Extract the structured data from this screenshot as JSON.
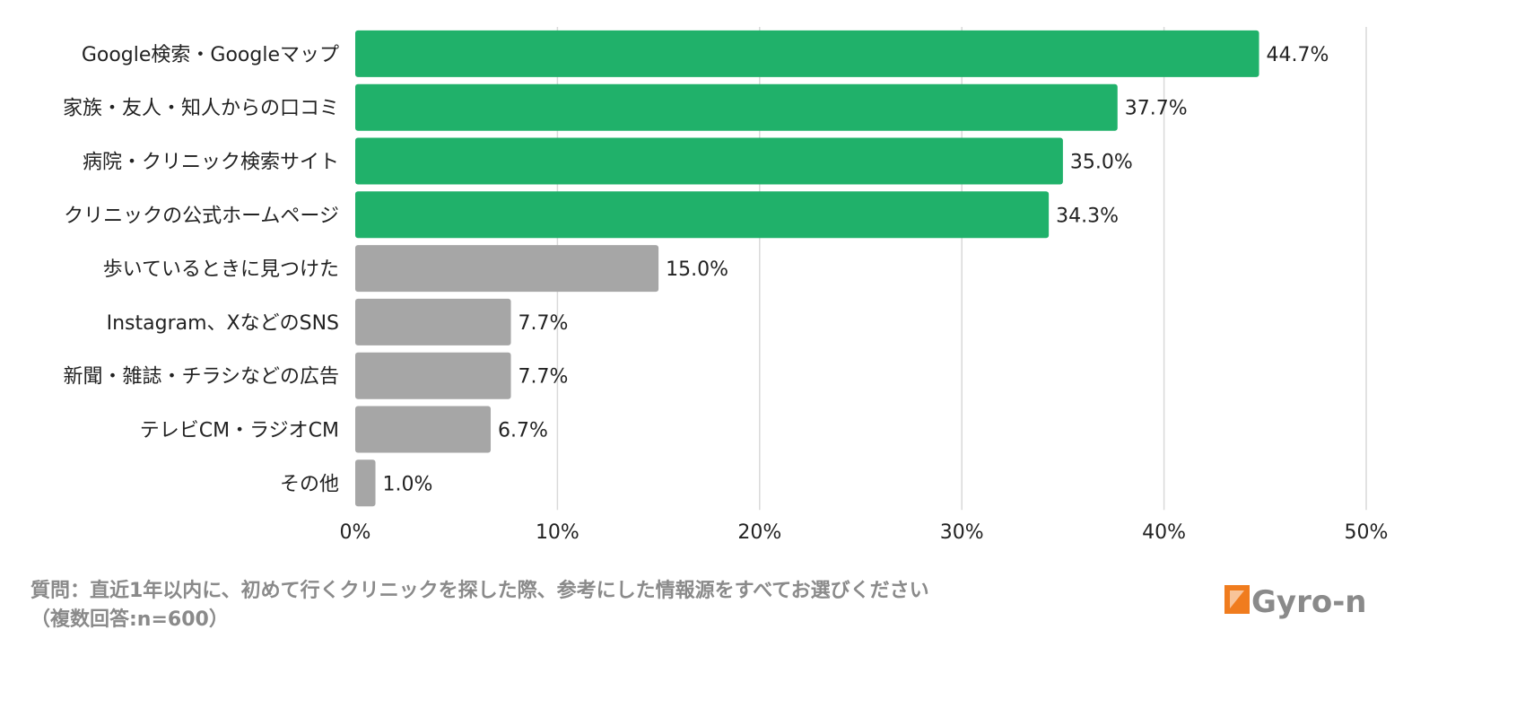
{
  "chart_data": {
    "type": "bar",
    "orientation": "horizontal",
    "categories": [
      "Google検索・Googleマップ",
      "家族・友人・知人からの口コミ",
      "病院・クリニック検索サイト",
      "クリニックの公式ホームページ",
      "歩いているときに見つけた",
      "Instagram、XなどのSNS",
      "新聞・雑誌・チラシなどの広告",
      "テレビCM・ラジオCM",
      "その他"
    ],
    "values": [
      44.7,
      37.7,
      35.0,
      34.3,
      15.0,
      7.7,
      7.7,
      6.7,
      1.0
    ],
    "value_labels": [
      "44.7%",
      "37.7%",
      "35.0%",
      "34.3%",
      "15.0%",
      "7.7%",
      "7.7%",
      "6.7%",
      "1.0%"
    ],
    "highlight_count": 4,
    "colors": {
      "highlight": "#20b16a",
      "normal": "#a6a6a6",
      "grid": "#d9d9d9"
    },
    "xlim": [
      0,
      50
    ],
    "xticks": [
      0,
      10,
      20,
      30,
      40,
      50
    ],
    "xtick_labels": [
      "0%",
      "10%",
      "20%",
      "30%",
      "40%",
      "50%"
    ],
    "grid": true
  },
  "caption": {
    "question": "質問：直近1年以内に、初めて行くクリニックを探した際、参考にした情報源をすべてお選びください",
    "note": "（複数回答:n=600）"
  },
  "logo": {
    "text": "Gyro-n",
    "color": "#f07c1e",
    "text_color": "#8a8a8a"
  }
}
